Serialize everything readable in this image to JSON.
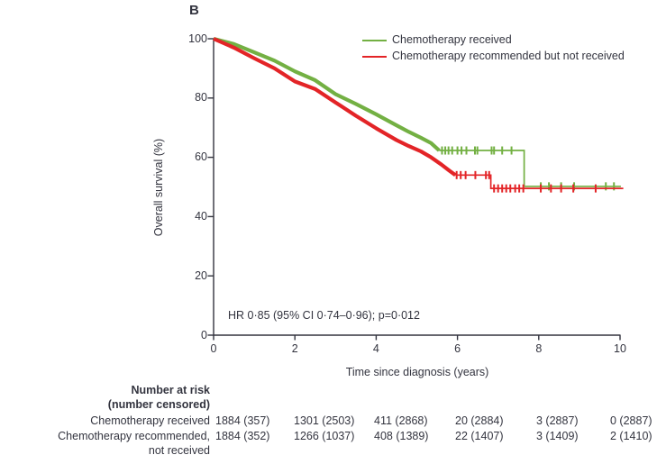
{
  "colors": {
    "background": "#ffffff",
    "text": "#33343f",
    "axis": "#33343f",
    "green": "#73b043",
    "red": "#e32427"
  },
  "chart_data": {
    "type": "line",
    "subtype": "kaplan-meier-survival",
    "title": "B",
    "xlabel": "Time since diagnosis (years)",
    "ylabel": "Overall survival (%)",
    "xlim": [
      0,
      10
    ],
    "ylim": [
      0,
      100
    ],
    "xticks": [
      0,
      2,
      4,
      6,
      8,
      10
    ],
    "yticks": [
      0,
      20,
      40,
      60,
      80,
      100
    ],
    "grid": false,
    "legend_position": "top-right-inside",
    "annotation": "HR 0·85 (95% CI 0·74–0·96); p=0·012",
    "series": [
      {
        "name": "Chemotherapy received",
        "color": "#73b043",
        "dense_until": 5.55,
        "points": [
          [
            0,
            100
          ],
          [
            0.5,
            98.2
          ],
          [
            1,
            95.4
          ],
          [
            1.5,
            92.6
          ],
          [
            2,
            89
          ],
          [
            2.5,
            86
          ],
          [
            3,
            81.3
          ],
          [
            3.5,
            78
          ],
          [
            4,
            74.5
          ],
          [
            4.5,
            70.8
          ],
          [
            4.8,
            68.6
          ],
          [
            5.1,
            66.6
          ],
          [
            5.35,
            64.8
          ],
          [
            5.55,
            62.3
          ],
          [
            7.64,
            62.3
          ],
          [
            7.64,
            50.2
          ],
          [
            10.02,
            50.2
          ]
        ],
        "censor_marks": [
          [
            5.62,
            62.3
          ],
          [
            5.7,
            62.3
          ],
          [
            5.78,
            62.3
          ],
          [
            5.87,
            62.3
          ],
          [
            6.0,
            62.3
          ],
          [
            6.1,
            62.3
          ],
          [
            6.22,
            62.3
          ],
          [
            6.43,
            62.3
          ],
          [
            6.49,
            62.3
          ],
          [
            6.84,
            62.3
          ],
          [
            6.9,
            62.3
          ],
          [
            7.1,
            62.3
          ],
          [
            7.33,
            62.3
          ],
          [
            8.05,
            50.2
          ],
          [
            8.25,
            50.2
          ],
          [
            8.55,
            50.2
          ],
          [
            8.87,
            50.2
          ],
          [
            9.65,
            50.2
          ],
          [
            9.85,
            50.2
          ]
        ]
      },
      {
        "name": "Chemotherapy recommended but not received",
        "color": "#e32427",
        "dense_until": 5.95,
        "points": [
          [
            0,
            100
          ],
          [
            0.5,
            97
          ],
          [
            1,
            93.4
          ],
          [
            1.5,
            90
          ],
          [
            2,
            85.6
          ],
          [
            2.5,
            83
          ],
          [
            3,
            78.5
          ],
          [
            3.5,
            74
          ],
          [
            4,
            69.8
          ],
          [
            4.5,
            65.8
          ],
          [
            4.8,
            63.8
          ],
          [
            5.1,
            62
          ],
          [
            5.35,
            60
          ],
          [
            5.6,
            57.6
          ],
          [
            5.8,
            55.5
          ],
          [
            5.95,
            54.0
          ],
          [
            6.82,
            54.0
          ],
          [
            6.82,
            49.5
          ],
          [
            10.08,
            49.5
          ]
        ],
        "censor_marks": [
          [
            5.98,
            54.0
          ],
          [
            6.08,
            54.0
          ],
          [
            6.2,
            54.0
          ],
          [
            6.44,
            54.0
          ],
          [
            6.7,
            54.0
          ],
          [
            6.78,
            54.0
          ],
          [
            6.9,
            49.5
          ],
          [
            7.0,
            49.5
          ],
          [
            7.1,
            49.5
          ],
          [
            7.2,
            49.5
          ],
          [
            7.3,
            49.5
          ],
          [
            7.42,
            49.5
          ],
          [
            7.52,
            49.5
          ],
          [
            7.62,
            49.5
          ],
          [
            8.05,
            49.5
          ],
          [
            8.3,
            49.5
          ],
          [
            8.55,
            49.5
          ],
          [
            8.85,
            49.5
          ],
          [
            9.4,
            49.5
          ]
        ]
      }
    ],
    "number_at_risk": {
      "header_lines": [
        "Number at risk",
        "(number censored)"
      ],
      "time_points": [
        0,
        2,
        4,
        6,
        8,
        10
      ],
      "rows": [
        {
          "label_lines": [
            "Chemotherapy received"
          ],
          "values": [
            "1884 (357)",
            "1301 (2503)",
            "411 (2868)",
            "20 (2884)",
            "3 (2887)",
            "0 (2887)"
          ]
        },
        {
          "label_lines": [
            "Chemotherapy recommended,",
            "not received"
          ],
          "values": [
            "1884 (352)",
            "1266 (1037)",
            "408 (1389)",
            "22 (1407)",
            "3 (1409)",
            "2 (1410)"
          ]
        }
      ]
    }
  }
}
